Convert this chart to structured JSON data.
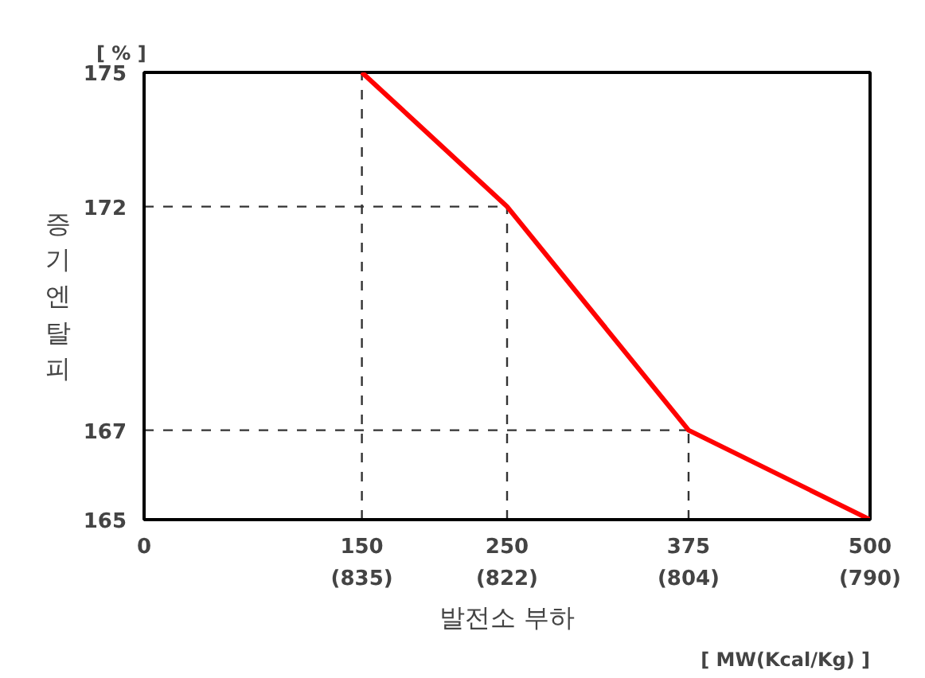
{
  "chart_data": {
    "type": "line",
    "x": [
      150,
      250,
      375,
      500
    ],
    "series": [
      {
        "color": "#ff0000",
        "values": [
          175,
          172,
          167,
          165
        ]
      }
    ],
    "xlim": [
      0,
      500
    ],
    "ylim": [
      165,
      175
    ],
    "xticks": [
      0,
      150,
      250,
      375,
      500
    ],
    "yticks": [
      165,
      167,
      172,
      175
    ],
    "ylabel": "증기엔탈피",
    "xlabel": "발전소 부하",
    "annotations": [
      "[ % ]",
      "[ MW(Kcal/Kg) ]",
      "(835)",
      "(822)",
      "(804)",
      "(790)"
    ],
    "ref_lines": [
      {
        "axis": "x",
        "value": 150,
        "line_style": "dashed",
        "color": "#333333"
      },
      {
        "axis": "x",
        "value": 250,
        "line_style": "dashed",
        "color": "#333333"
      },
      {
        "axis": "x",
        "value": 375,
        "line_style": "dashed",
        "color": "#333333"
      },
      {
        "axis": "y",
        "value": 172,
        "line_style": "dashed",
        "color": "#333333"
      },
      {
        "axis": "y",
        "value": 167,
        "line_style": "dashed",
        "color": "#333333"
      }
    ],
    "grid": false,
    "marker": "none",
    "line_style": "solid"
  }
}
